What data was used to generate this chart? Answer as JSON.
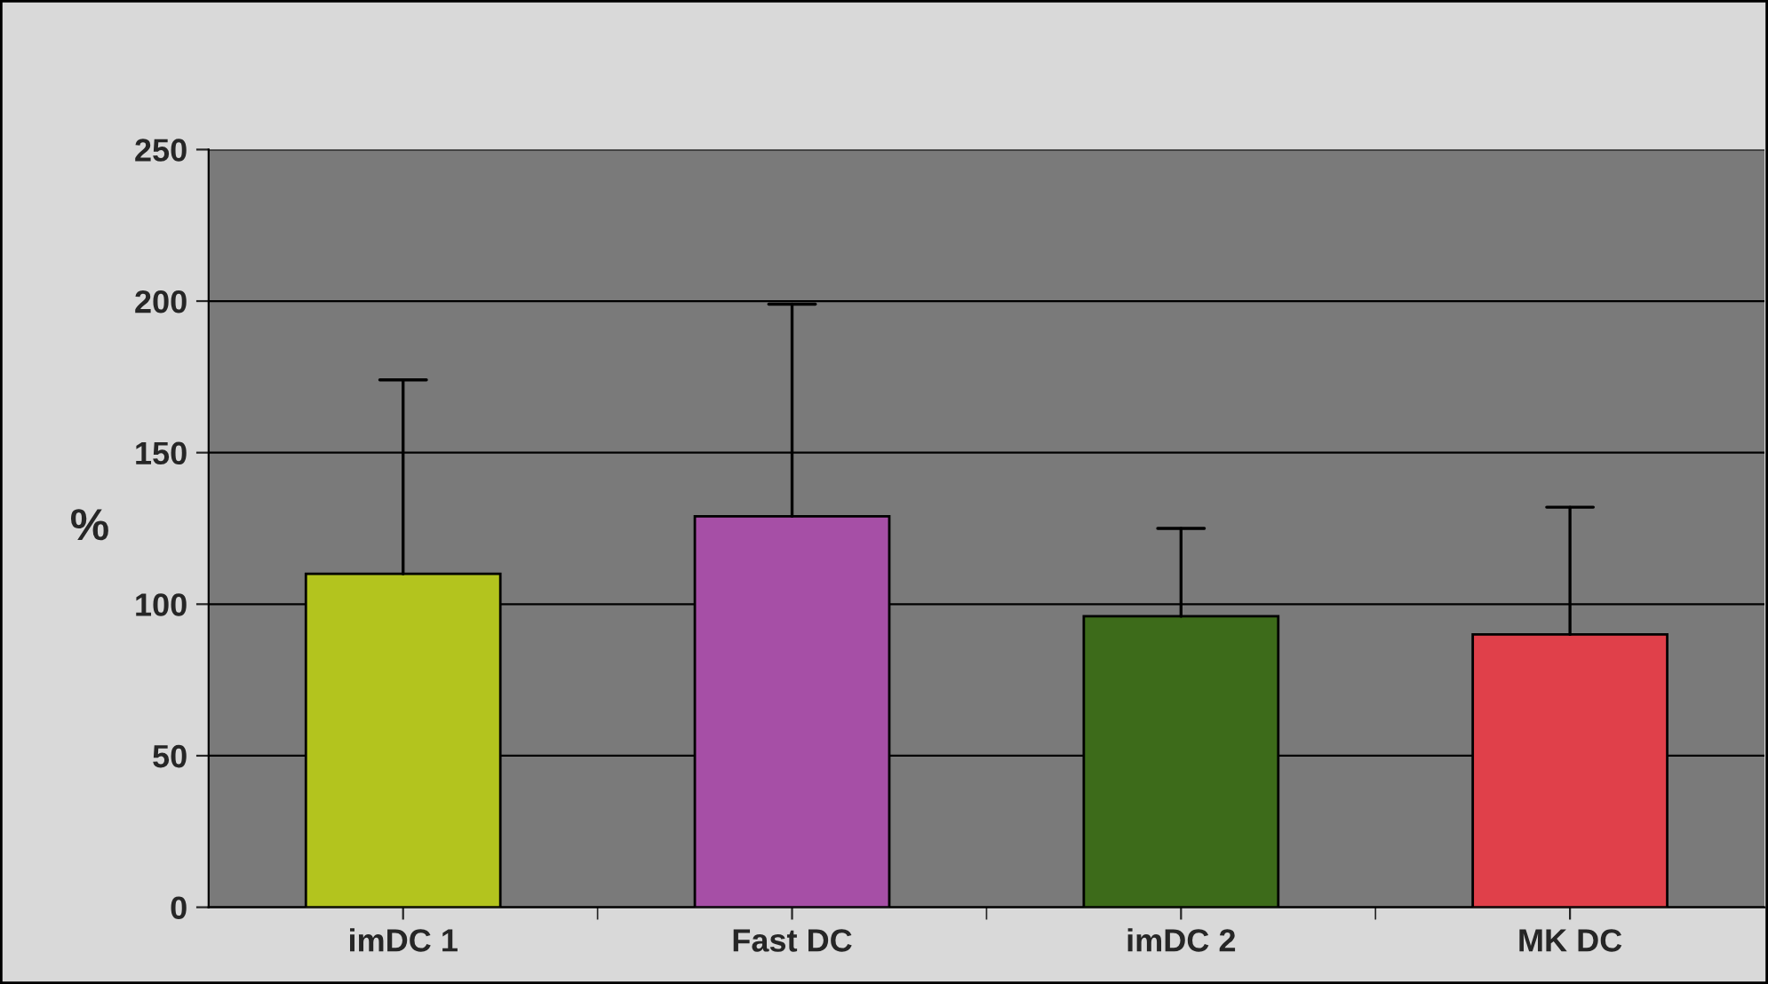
{
  "chart_data": {
    "type": "bar",
    "ylabel": "%",
    "categories": [
      "imDC 1",
      "Fast DC",
      "imDC 2",
      "MK DC"
    ],
    "values": [
      110,
      129,
      96,
      90
    ],
    "colors": [
      "#b3c41e",
      "#a64fa6",
      "#3d6b1a",
      "#e0404a"
    ],
    "errors": [
      [
        110,
        174
      ],
      [
        129,
        199
      ],
      [
        96,
        125
      ],
      [
        90,
        132
      ]
    ],
    "ylim": [
      0,
      250
    ],
    "yticks": [
      0,
      50,
      100,
      150,
      200,
      250
    ],
    "grid": "y"
  }
}
